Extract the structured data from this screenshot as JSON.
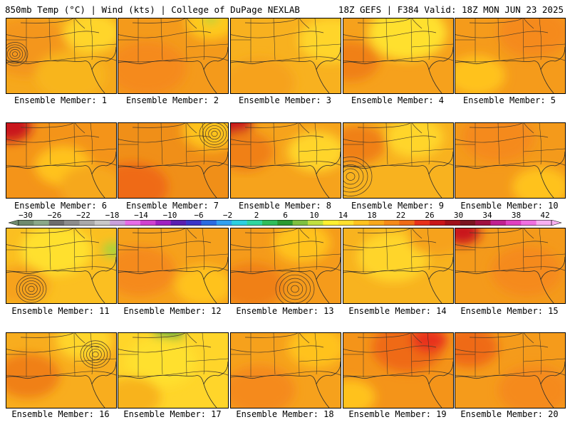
{
  "header": {
    "left": "850mb Temp (°C) | Wind (kts) | College of DuPage NEXLAB",
    "right": "18Z GEFS | F384 Valid: 18Z MON JUN 23 2025"
  },
  "members": [
    {
      "label": "Ensemble Member: 1",
      "base": "#f6a81c",
      "blobs": [
        [
          "#f4961a",
          30,
          40,
          60
        ],
        [
          "#ffd52a",
          120,
          20,
          40
        ],
        [
          "#f8b51e",
          90,
          80,
          50
        ]
      ],
      "low": [
        12,
        50,
        6
      ]
    },
    {
      "label": "Ensemble Member: 2",
      "base": "#f49a1b",
      "blobs": [
        [
          "#f58a1a",
          40,
          70,
          55
        ],
        [
          "#ffc91d",
          130,
          5,
          35
        ],
        [
          "#a7d43b",
          130,
          0,
          10
        ]
      ],
      "low": null
    },
    {
      "label": "Ensemble Member: 3",
      "base": "#f8b11f",
      "blobs": [
        [
          "#ffd52a",
          140,
          30,
          45
        ],
        [
          "#f6a21b",
          40,
          90,
          50
        ]
      ],
      "low": null
    },
    {
      "label": "Ensemble Member: 4",
      "base": "#f6a11c",
      "blobs": [
        [
          "#ffe02e",
          90,
          20,
          55
        ],
        [
          "#f08018",
          10,
          60,
          40
        ]
      ],
      "low": null
    },
    {
      "label": "Ensemble Member: 5",
      "base": "#f59b1b",
      "blobs": [
        [
          "#f58a1a",
          110,
          20,
          50
        ],
        [
          "#ffc21f",
          30,
          80,
          40
        ]
      ],
      "low": null
    },
    {
      "label": "Ensemble Member: 6",
      "base": "#f49419",
      "blobs": [
        [
          "#c9151a",
          5,
          5,
          30
        ],
        [
          "#ffc21f",
          80,
          60,
          40
        ],
        [
          "#f6a81c",
          120,
          90,
          45
        ]
      ],
      "low": null
    },
    {
      "label": "Ensemble Member: 7",
      "base": "#f08f18",
      "blobs": [
        [
          "#ef6a16",
          20,
          90,
          50
        ],
        [
          "#ffc21f",
          130,
          10,
          40
        ]
      ],
      "low": [
        135,
        15,
        7
      ]
    },
    {
      "label": "Ensemble Member: 8",
      "base": "#f6a31c",
      "blobs": [
        [
          "#c9151a",
          0,
          0,
          30
        ],
        [
          "#f08018",
          20,
          40,
          40
        ],
        [
          "#ffd52a",
          120,
          40,
          40
        ]
      ],
      "low": null
    },
    {
      "label": "Ensemble Member: 9",
      "base": "#f8b21f",
      "blobs": [
        [
          "#f08018",
          20,
          30,
          40
        ],
        [
          "#ffd52a",
          100,
          20,
          40
        ]
      ],
      "low": [
        10,
        75,
        10
      ]
    },
    {
      "label": "Ensemble Member: 10",
      "base": "#f49a1b",
      "blobs": [
        [
          "#f58a1a",
          60,
          20,
          50
        ],
        [
          "#ffc21f",
          120,
          90,
          40
        ]
      ],
      "low": null
    },
    {
      "label": "Ensemble Member: 11",
      "base": "#fbbf21",
      "blobs": [
        [
          "#ffe02e",
          70,
          30,
          50
        ],
        [
          "#a7d43b",
          150,
          30,
          15
        ],
        [
          "#f6a21b",
          20,
          80,
          40
        ]
      ],
      "low": [
        35,
        85,
        7
      ]
    },
    {
      "label": "Ensemble Member: 12",
      "base": "#f6a11c",
      "blobs": [
        [
          "#f58a1a",
          30,
          60,
          50
        ],
        [
          "#ffc21f",
          120,
          80,
          40
        ]
      ],
      "low": null
    },
    {
      "label": "Ensemble Member: 13",
      "base": "#f59b1b",
      "blobs": [
        [
          "#ffc21f",
          100,
          20,
          40
        ],
        [
          "#f08018",
          30,
          80,
          45
        ]
      ],
      "low": [
        90,
        85,
        9
      ]
    },
    {
      "label": "Ensemble Member: 14",
      "base": "#f8b31f",
      "blobs": [
        [
          "#ffd52a",
          70,
          40,
          50
        ],
        [
          "#f6a21b",
          130,
          10,
          40
        ]
      ],
      "low": null
    },
    {
      "label": "Ensemble Member: 15",
      "base": "#f49a1b",
      "blobs": [
        [
          "#c9151a",
          10,
          5,
          25
        ],
        [
          "#f58a1a",
          100,
          60,
          50
        ]
      ],
      "low": null
    },
    {
      "label": "Ensemble Member: 16",
      "base": "#f8ad1e",
      "blobs": [
        [
          "#f08018",
          30,
          60,
          45
        ],
        [
          "#ffd52a",
          110,
          10,
          40
        ]
      ],
      "low": [
        125,
        30,
        7
      ]
    },
    {
      "label": "Ensemble Member: 17",
      "base": "#ffd52a",
      "blobs": [
        [
          "#4fae3c",
          70,
          0,
          20
        ],
        [
          "#ffe02e",
          60,
          40,
          50
        ],
        [
          "#f8b31f",
          20,
          90,
          40
        ]
      ],
      "low": null
    },
    {
      "label": "Ensemble Member: 18",
      "base": "#f6a11c",
      "blobs": [
        [
          "#f58a1a",
          40,
          80,
          50
        ],
        [
          "#ffc21f",
          120,
          20,
          40
        ]
      ],
      "low": null
    },
    {
      "label": "Ensemble Member: 19",
      "base": "#f49419",
      "blobs": [
        [
          "#ef6a16",
          90,
          20,
          50
        ],
        [
          "#e8301a",
          120,
          10,
          25
        ],
        [
          "#ffc21f",
          10,
          90,
          35
        ]
      ],
      "low": null
    },
    {
      "label": "Ensemble Member: 20",
      "base": "#f59b1b",
      "blobs": [
        [
          "#ef6a16",
          20,
          20,
          40
        ],
        [
          "#f58a1a",
          110,
          80,
          50
        ]
      ],
      "low": null
    }
  ],
  "colorbar": {
    "ticks": [
      "-30",
      "-26",
      "-22",
      "-18",
      "-14",
      "-10",
      "-6",
      "-2",
      "2",
      "6",
      "10",
      "14",
      "18",
      "22",
      "26",
      "30",
      "34",
      "38",
      "42"
    ],
    "colors": [
      "#6e8a6e",
      "#8aa88a",
      "#6d6d6d",
      "#8c8c8c",
      "#a9a9a9",
      "#c8c8c8",
      "#c9a0dc",
      "#e86ce8",
      "#d040d0",
      "#a020c0",
      "#5a1fb0",
      "#3a35c8",
      "#2b6be0",
      "#32a0f0",
      "#2cd0e0",
      "#2ed6a0",
      "#2ebd5a",
      "#2a9a30",
      "#7ec040",
      "#c0e040",
      "#fff030",
      "#ffe02e",
      "#ffc21f",
      "#f8a81c",
      "#f58a1a",
      "#ef6a16",
      "#e8301a",
      "#c9151a",
      "#a0101a",
      "#7a1420",
      "#a01040",
      "#c02090",
      "#e040c0",
      "#f070e0",
      "#f8b0f0"
    ]
  }
}
